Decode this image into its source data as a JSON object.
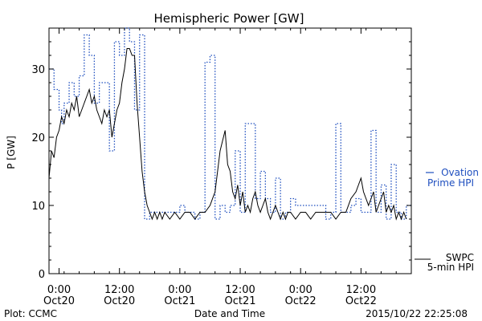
{
  "chart_data": {
    "type": "line",
    "title": "Hemispheric Power [GW]",
    "ylabel": "P [GW]",
    "xlabel": "Date and Time",
    "x_units": "hours from 2015-10-20 00:00",
    "xlim": [
      -2,
      70
    ],
    "ylim": [
      0,
      36
    ],
    "yticks": [
      0,
      10,
      20,
      30
    ],
    "xticks": [
      {
        "x": 0,
        "time": "0:00",
        "date": "Oct20"
      },
      {
        "x": 12,
        "time": "12:00",
        "date": "Oct20"
      },
      {
        "x": 24,
        "time": "0:00",
        "date": "Oct21"
      },
      {
        "x": 36,
        "time": "12:00",
        "date": "Oct21"
      },
      {
        "x": 48,
        "time": "0:00",
        "date": "Oct22"
      },
      {
        "x": 60,
        "time": "12:00",
        "date": "Oct22"
      }
    ],
    "series": [
      {
        "name": "Ovation Prime HPI",
        "legend_line1": "Ovation",
        "legend_line2": "Prime HPI",
        "color": "#1f4fbf",
        "style": "dotted-step",
        "x": [
          -2,
          -1,
          0,
          0.5,
          1,
          2,
          3,
          4,
          5,
          6,
          7,
          8,
          9,
          10,
          11,
          12,
          13,
          14,
          15,
          16,
          17,
          18,
          19,
          20,
          21,
          22,
          23,
          24,
          25,
          26,
          27,
          28,
          29,
          30,
          31,
          32,
          33,
          34,
          35,
          36,
          37,
          38,
          39,
          40,
          41,
          42,
          43,
          44,
          45,
          46,
          47,
          48,
          49,
          50,
          51,
          52,
          53,
          54,
          55,
          56,
          57,
          58,
          59,
          60,
          61,
          62,
          63,
          64,
          65,
          66,
          67,
          68,
          69
        ],
        "y": [
          30,
          27,
          24,
          22,
          25,
          28,
          26,
          29,
          35,
          32,
          25,
          28,
          28,
          18,
          34,
          32,
          36,
          34,
          24,
          35,
          8,
          9,
          9,
          9,
          9,
          9,
          9,
          10,
          9,
          9,
          8,
          9,
          31,
          32,
          8,
          10,
          9,
          10,
          18,
          9,
          22,
          22,
          11,
          15,
          11,
          9,
          14,
          8,
          9,
          11,
          10,
          10,
          10,
          10,
          10,
          10,
          8,
          9,
          22,
          9,
          9,
          10,
          11,
          9,
          9,
          21,
          9,
          13,
          8,
          16,
          9,
          8,
          10
        ]
      },
      {
        "name": "SWPC 5-min HPI",
        "legend_line1": "SWPC",
        "legend_line2": "5-min HPI",
        "color": "#000000",
        "style": "solid",
        "x": [
          -2,
          -1.5,
          -1,
          -0.5,
          0,
          0.5,
          1,
          1.5,
          2,
          2.5,
          3,
          3.5,
          4,
          4.5,
          5,
          5.5,
          6,
          6.5,
          7,
          7.5,
          8,
          8.5,
          9,
          9.5,
          10,
          10.5,
          11,
          11.5,
          12,
          12.5,
          13,
          13.5,
          14,
          14.5,
          15,
          15.5,
          16,
          16.5,
          17,
          17.5,
          18,
          18.5,
          19,
          19.5,
          20,
          20.5,
          21,
          22,
          23,
          24,
          25,
          26,
          27,
          28,
          29,
          30,
          31,
          32,
          33,
          33.5,
          34,
          34.5,
          35,
          35.5,
          36,
          36.5,
          37,
          37.5,
          38,
          38.5,
          39,
          39.5,
          40,
          40.5,
          41,
          41.5,
          42,
          42.5,
          43,
          43.5,
          44,
          44.5,
          45,
          45.5,
          46,
          47,
          48,
          49,
          50,
          51,
          52,
          53,
          54,
          55,
          56,
          57,
          58,
          59,
          59.5,
          60,
          60.5,
          61,
          61.5,
          62,
          62.5,
          63,
          63.5,
          64,
          64.5,
          65,
          65.5,
          66,
          66.5,
          67,
          67.5,
          68,
          68.5,
          69
        ],
        "y": [
          14,
          18,
          17,
          20,
          21,
          23,
          22,
          24,
          23,
          25,
          24,
          26,
          23,
          24,
          25,
          26,
          27,
          25,
          26,
          24,
          23,
          22,
          24,
          23,
          24,
          20,
          22,
          24,
          25,
          28,
          30,
          33,
          33,
          32,
          32,
          25,
          20,
          15,
          12,
          10,
          9,
          8,
          9,
          8,
          9,
          8,
          9,
          8,
          9,
          8,
          9,
          9,
          8,
          9,
          9,
          10,
          12,
          18,
          21,
          16,
          15,
          12,
          11,
          13,
          10,
          12,
          9,
          10,
          9,
          11,
          12,
          10,
          9,
          10,
          11,
          9,
          8,
          9,
          10,
          9,
          8,
          9,
          8,
          9,
          9,
          8,
          9,
          9,
          8,
          9,
          9,
          9,
          9,
          8,
          9,
          9,
          11,
          12,
          13,
          14,
          12,
          11,
          10,
          11,
          12,
          9,
          10,
          11,
          12,
          9,
          10,
          9,
          10,
          8,
          9,
          8,
          9,
          8
        ]
      }
    ]
  },
  "footer": {
    "left": "Plot: CCMC",
    "timestamp": "2015/10/22 22:25:08"
  }
}
